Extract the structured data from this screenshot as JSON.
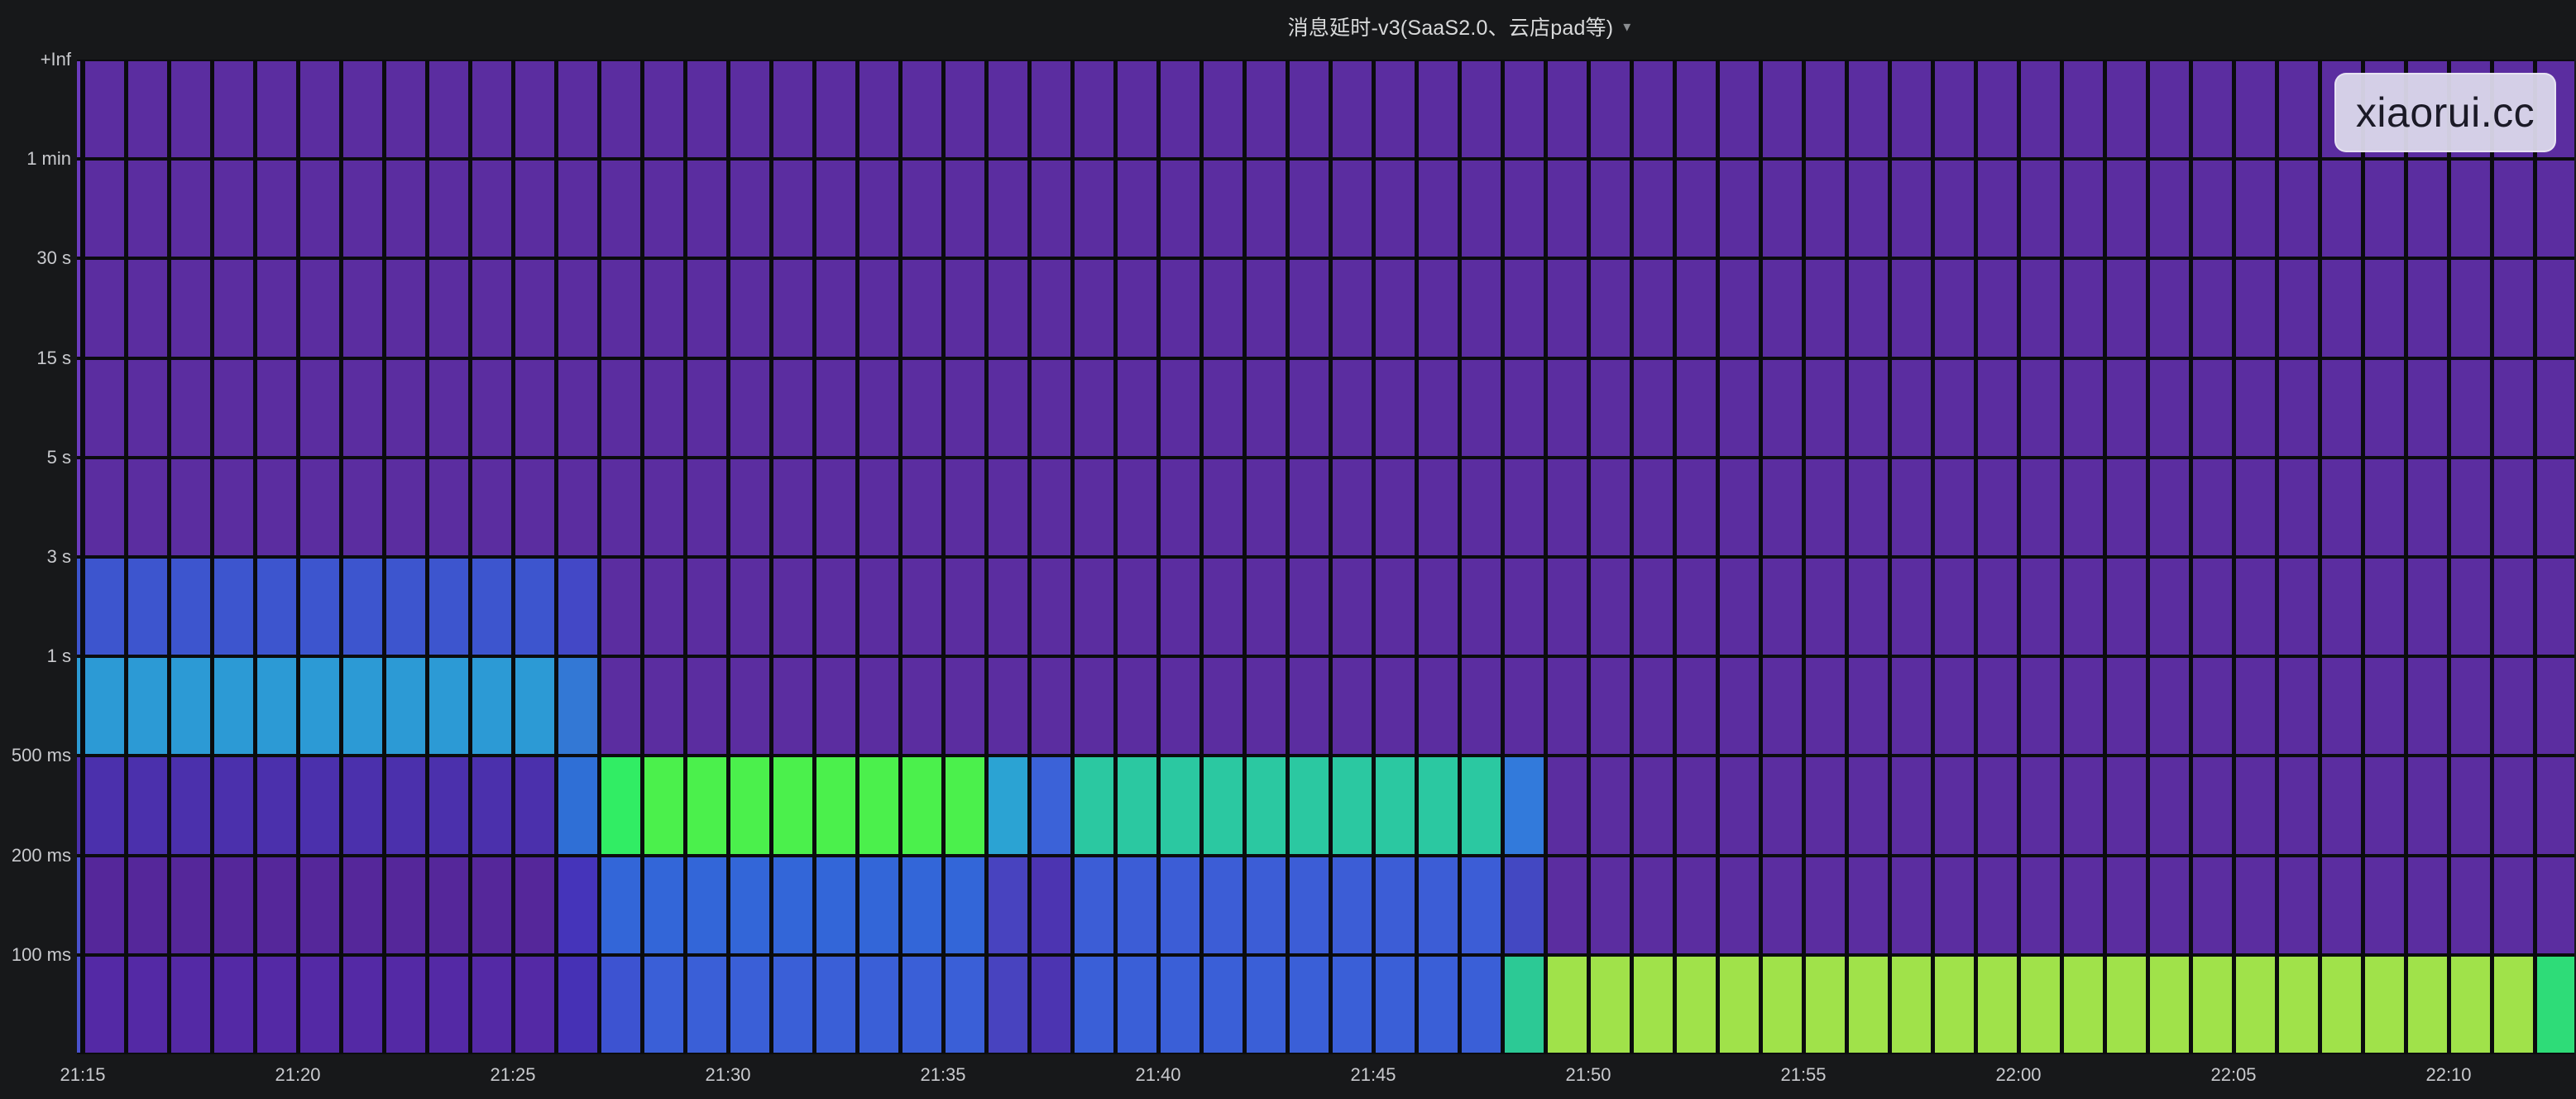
{
  "panel": {
    "title": "消息延时-v3(SaaS2.0、云店pad等)",
    "menu_caret": "▾"
  },
  "watermark": "xiaorui.cc",
  "colors": {
    "page_bg": "#17181a",
    "plot_bg": "#0b0c0e",
    "axis_text": "#c9cace",
    "title_text": "#d8d9da"
  },
  "chart_data": {
    "type": "heatmap",
    "title": "消息延时-v3(SaaS2.0、云店pad等)",
    "xlabel": "",
    "ylabel": "",
    "legend": "none",
    "grid": "off",
    "x_range": [
      "21:14",
      "22:12"
    ],
    "x_tick_labels": [
      "21:15",
      "21:20",
      "21:25",
      "21:30",
      "21:35",
      "21:40",
      "21:45",
      "21:50",
      "21:55",
      "22:00",
      "22:05",
      "22:10"
    ],
    "columns": [
      "21:15",
      "21:16",
      "21:17",
      "21:18",
      "21:19",
      "21:20",
      "21:21",
      "21:22",
      "21:23",
      "21:24",
      "21:25",
      "21:26",
      "21:27",
      "21:28",
      "21:29",
      "21:30",
      "21:31",
      "21:32",
      "21:33",
      "21:34",
      "21:35",
      "21:36",
      "21:37",
      "21:38",
      "21:39",
      "21:40",
      "21:41",
      "21:42",
      "21:43",
      "21:44",
      "21:45",
      "21:46",
      "21:47",
      "21:48",
      "21:49",
      "21:50",
      "21:51",
      "21:52",
      "21:53",
      "21:54",
      "21:55",
      "21:56",
      "21:57",
      "21:58",
      "21:59",
      "22:00",
      "22:01",
      "22:02",
      "22:03",
      "22:04",
      "22:05",
      "22:06",
      "22:07",
      "22:08",
      "22:09",
      "22:10",
      "22:11",
      "22:12"
    ],
    "y_buckets": [
      "+Inf",
      "1 min",
      "30 s",
      "15 s",
      "5 s",
      "3 s",
      "1 s",
      "500 ms",
      "200 ms",
      "100 ms"
    ],
    "palette": {
      "P": "#5b2da0",
      "PL": "#6c3cbe",
      "B1": "#3d55ce",
      "B2": "#4348c6",
      "C1": "#2c9ad5",
      "C2": "#3378d5",
      "I1": "#4b30ac",
      "BL": "#2f6fd6",
      "G2": "#31ed64",
      "G1": "#4bf04c",
      "C3": "#2ba3d3",
      "B6": "#3b62d8",
      "T1": "#2bc8a1",
      "B7": "#327adb",
      "P2": "#55279a",
      "I2": "#4534ba",
      "B4": "#3366d8",
      "I4": "#4843bf",
      "I5": "#4c34b1",
      "B8": "#3c5dd6",
      "I6": "#4348c2",
      "P3": "#5429a5",
      "I3": "#4631b5",
      "B9": "#3d53d1",
      "B5": "#3a5fd7",
      "TG": "#2cc995",
      "Y1": "#a0e24a",
      "SG": "#2edc78",
      "IB": "#4a52ce"
    },
    "rows": [
      {
        "bucket": "+Inf",
        "runs": [
          [
            "P",
            58
          ]
        ]
      },
      {
        "bucket": "1 min",
        "runs": [
          [
            "P",
            58
          ]
        ]
      },
      {
        "bucket": "30 s",
        "runs": [
          [
            "P",
            58
          ]
        ]
      },
      {
        "bucket": "15 s",
        "runs": [
          [
            "P",
            58
          ]
        ]
      },
      {
        "bucket": "5 s",
        "runs": [
          [
            "P",
            58
          ]
        ]
      },
      {
        "bucket": "3 s",
        "runs": [
          [
            "B1",
            11
          ],
          [
            "B2",
            1
          ],
          [
            "P",
            46
          ]
        ]
      },
      {
        "bucket": "1 s",
        "runs": [
          [
            "C1",
            11
          ],
          [
            "C2",
            1
          ],
          [
            "P",
            46
          ]
        ]
      },
      {
        "bucket": "500 ms",
        "runs": [
          [
            "I1",
            11
          ],
          [
            "BL",
            1
          ],
          [
            "G2",
            1
          ],
          [
            "G1",
            8
          ],
          [
            "C3",
            1
          ],
          [
            "B6",
            1
          ],
          [
            "T1",
            10
          ],
          [
            "B7",
            1
          ],
          [
            "P",
            24
          ]
        ]
      },
      {
        "bucket": "200 ms",
        "runs": [
          [
            "P2",
            11
          ],
          [
            "I2",
            1
          ],
          [
            "B4",
            9
          ],
          [
            "I4",
            1
          ],
          [
            "I5",
            1
          ],
          [
            "B8",
            10
          ],
          [
            "I6",
            1
          ],
          [
            "P",
            24
          ]
        ]
      },
      {
        "bucket": "100 ms",
        "runs": [
          [
            "P3",
            11
          ],
          [
            "I3",
            1
          ],
          [
            "B9",
            1
          ],
          [
            "B5",
            8
          ],
          [
            "I4",
            1
          ],
          [
            "I5",
            1
          ],
          [
            "B5",
            10
          ],
          [
            "TG",
            1
          ],
          [
            "Y1",
            23
          ],
          [
            "SG",
            1
          ]
        ]
      }
    ],
    "leading_partial_column": {
      "time": "21:14",
      "row_colors": [
        "PL",
        "PL",
        "PL",
        "PL",
        "PL",
        "B1",
        "C1",
        "I1",
        "IB",
        "IB"
      ]
    }
  }
}
